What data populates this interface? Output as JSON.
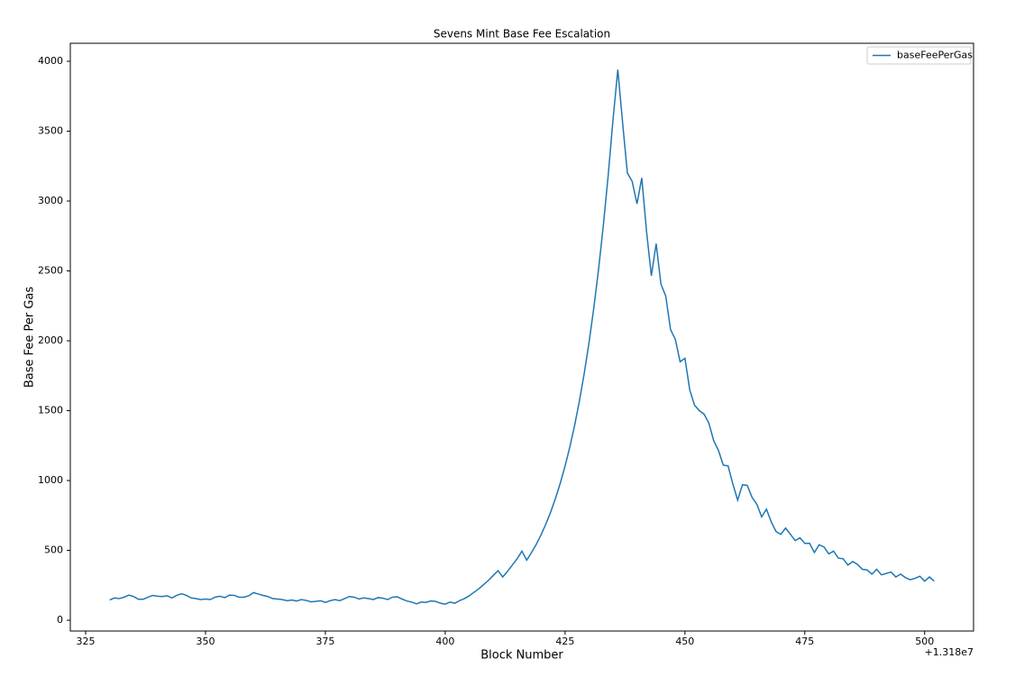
{
  "chart_data": {
    "type": "line",
    "title": "Sevens Mint Base Fee Escalation",
    "x_label": "Block Number",
    "y_label": "Base Fee Per Gas",
    "x_offset_label": "+1.318e7",
    "x": [
      330,
      331,
      332,
      333,
      334,
      335,
      336,
      337,
      338,
      339,
      340,
      341,
      342,
      343,
      344,
      345,
      346,
      347,
      348,
      349,
      350,
      351,
      352,
      353,
      354,
      355,
      356,
      357,
      358,
      359,
      360,
      361,
      362,
      363,
      364,
      365,
      366,
      367,
      368,
      369,
      370,
      371,
      372,
      373,
      374,
      375,
      376,
      377,
      378,
      379,
      380,
      381,
      382,
      383,
      384,
      385,
      386,
      387,
      388,
      389,
      390,
      391,
      392,
      393,
      394,
      395,
      396,
      397,
      398,
      399,
      400,
      401,
      402,
      403,
      404,
      405,
      406,
      407,
      408,
      409,
      410,
      411,
      412,
      413,
      414,
      415,
      416,
      417,
      418,
      419,
      420,
      421,
      422,
      423,
      424,
      425,
      426,
      427,
      428,
      429,
      430,
      431,
      432,
      433,
      434,
      435,
      436,
      437,
      438,
      439,
      440,
      441,
      442,
      443,
      444,
      445,
      446,
      447,
      448,
      449,
      450,
      451,
      452,
      453,
      454,
      455,
      456,
      457,
      458,
      459,
      460,
      461,
      462,
      463,
      464,
      465,
      466,
      467,
      468,
      469,
      470,
      471,
      472,
      473,
      474,
      475,
      476,
      477,
      478,
      479,
      480,
      481,
      482,
      483,
      484,
      485,
      486,
      487,
      488,
      489,
      490,
      491,
      492,
      493,
      494,
      495,
      496,
      497,
      498,
      499,
      500,
      501,
      502
    ],
    "series": [
      {
        "name": "baseFeePerGas",
        "color": "#1f77b4",
        "values": [
          145,
          160,
          155,
          165,
          180,
          170,
          150,
          150,
          165,
          178,
          172,
          170,
          175,
          160,
          178,
          190,
          178,
          160,
          155,
          148,
          152,
          148,
          165,
          172,
          162,
          180,
          178,
          165,
          165,
          175,
          198,
          188,
          178,
          170,
          155,
          152,
          148,
          140,
          145,
          138,
          148,
          142,
          132,
          135,
          140,
          128,
          140,
          148,
          140,
          155,
          170,
          165,
          152,
          160,
          155,
          148,
          162,
          158,
          148,
          165,
          168,
          152,
          138,
          130,
          118,
          130,
          128,
          138,
          135,
          122,
          115,
          130,
          122,
          140,
          155,
          175,
          200,
          225,
          255,
          285,
          320,
          355,
          310,
          350,
          395,
          440,
          495,
          430,
          484,
          544,
          612,
          689,
          775,
          872,
          981,
          1103,
          1241,
          1396,
          1571,
          1767,
          1988,
          2237,
          2516,
          2831,
          3185,
          3583,
          3940,
          3560,
          3200,
          3140,
          2980,
          3165,
          2780,
          2465,
          2695,
          2405,
          2320,
          2080,
          2010,
          1850,
          1875,
          1650,
          1540,
          1500,
          1475,
          1410,
          1285,
          1215,
          1110,
          1105,
          975,
          860,
          970,
          965,
          880,
          830,
          740,
          795,
          705,
          635,
          615,
          660,
          615,
          570,
          590,
          550,
          550,
          485,
          540,
          525,
          475,
          495,
          445,
          440,
          395,
          420,
          400,
          365,
          360,
          330,
          365,
          325,
          335,
          345,
          310,
          330,
          305,
          290,
          300,
          315,
          280,
          310,
          280
        ]
      }
    ],
    "xlim": [
      321.8,
      510.2
    ],
    "ylim": [
      -77,
      4129
    ],
    "xticks": [
      325,
      350,
      375,
      400,
      425,
      450,
      475,
      500
    ],
    "yticks": [
      0,
      500,
      1000,
      1500,
      2000,
      2500,
      3000,
      3500,
      4000
    ],
    "legend": "upper right"
  }
}
